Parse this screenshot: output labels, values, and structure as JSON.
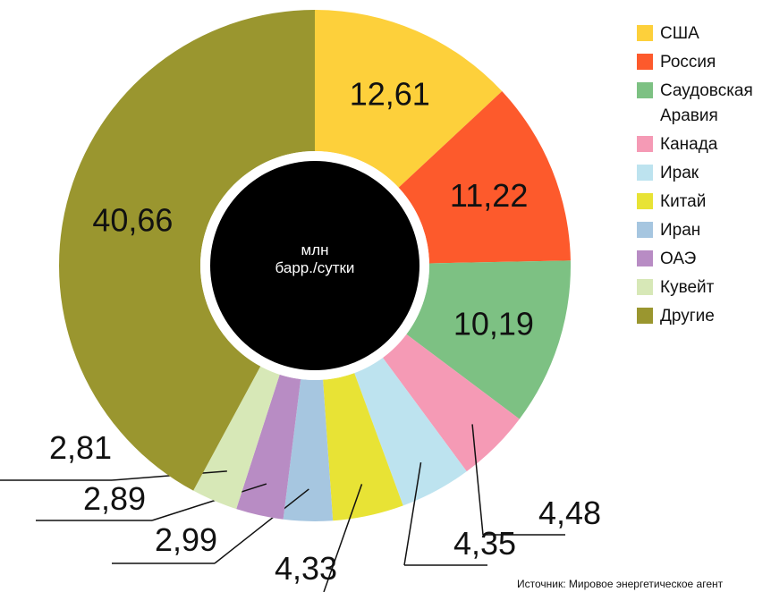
{
  "chart_data": {
    "type": "donut",
    "center_label": [
      "млн",
      "барр./сутки"
    ],
    "categories": [
      "США",
      "Россия",
      "Саудовская Аравия",
      "Канада",
      "Ирак",
      "Китай",
      "Иран",
      "ОАЭ",
      "Кувейт",
      "Другие"
    ],
    "values": [
      12.61,
      11.22,
      10.19,
      4.48,
      4.35,
      4.33,
      2.99,
      2.89,
      2.81,
      40.66
    ],
    "value_labels": [
      "12,61",
      "11,22",
      "10,19",
      "4,48",
      "4,35",
      "4,33",
      "2,99",
      "2,89",
      "2,81",
      "40,66"
    ],
    "colors": [
      "#fdd03b",
      "#fd5a2c",
      "#7dc183",
      "#f59ab5",
      "#bde3ef",
      "#e8e335",
      "#a6c6e0",
      "#b88cc4",
      "#d7e8b7",
      "#9a962f"
    ],
    "source": "Источник: Мировое энергетическое агент"
  }
}
